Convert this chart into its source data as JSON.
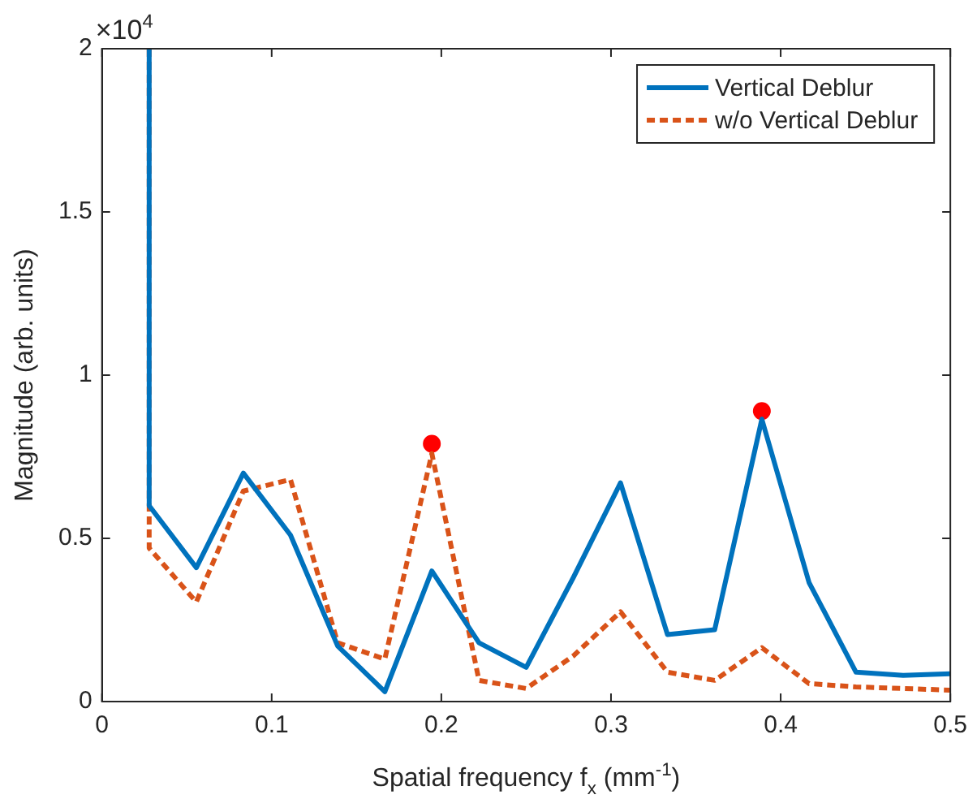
{
  "chart_data": {
    "type": "line",
    "xlabel": "Spatial frequency f$_{x}$ (mm$^{-1}$)",
    "ylabel": "Magnitude (arb. units)",
    "annotations": [
      "×10$^{4}$"
    ],
    "xlim": [
      0,
      0.5
    ],
    "xticks": [
      0,
      0.1,
      0.2,
      0.3,
      0.4,
      0.5
    ],
    "ylim": [
      0,
      2
    ],
    "yticks": [
      0,
      0.5,
      1,
      1.5,
      2
    ],
    "grid": false,
    "legend": "top right",
    "marker": "none",
    "series": [
      {
        "name": "Vertical Deblur",
        "color": "#0072bd",
        "line_style": "solid",
        "x": [
          0.0278,
          0.0278,
          0.0556,
          0.0833,
          0.1111,
          0.1389,
          0.1667,
          0.1944,
          0.2222,
          0.25,
          0.2778,
          0.3056,
          0.3333,
          0.3611,
          0.3889,
          0.4167,
          0.4444,
          0.4722,
          0.5
        ],
        "values": [
          2,
          0.6,
          0.41,
          0.7,
          0.51,
          0.17,
          0.03,
          0.4,
          0.18,
          0.105,
          0.38,
          0.67,
          0.205,
          0.22,
          0.865,
          0.365,
          0.09,
          0.08,
          0.085
        ]
      },
      {
        "name": "w/o Vertical Deblur",
        "color": "#d95319",
        "line_style": "dashed",
        "x": [
          0.0278,
          0.0278,
          0.0556,
          0.0833,
          0.1111,
          0.1389,
          0.1667,
          0.1944,
          0.2222,
          0.25,
          0.2778,
          0.3056,
          0.3333,
          0.3611,
          0.3889,
          0.4167,
          0.4444,
          0.4722,
          0.5
        ],
        "values": [
          2,
          0.47,
          0.305,
          0.645,
          0.68,
          0.18,
          0.13,
          0.76,
          0.065,
          0.04,
          0.14,
          0.275,
          0.09,
          0.065,
          0.165,
          0.055,
          0.045,
          0.04,
          0.035
        ]
      },
      {
        "type": "scatter",
        "color": "#ff0000",
        "marker": "circle",
        "x": [
          0.1944,
          0.3889
        ],
        "values": [
          0.79,
          0.89
        ]
      }
    ]
  }
}
